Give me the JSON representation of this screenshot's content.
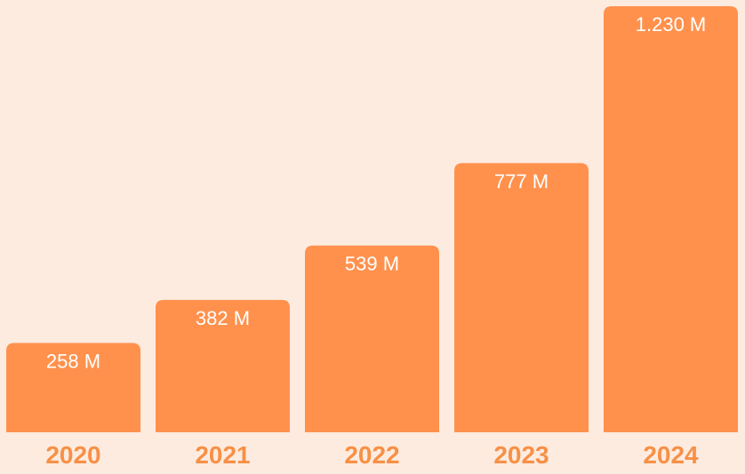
{
  "chart_data": {
    "type": "bar",
    "categories": [
      "2020",
      "2021",
      "2022",
      "2023",
      "2024"
    ],
    "values": [
      258,
      382,
      539,
      777,
      1230
    ],
    "data_labels": [
      "258 M",
      "382 M",
      "539 M",
      "777 M",
      "1.230 M"
    ],
    "ylim": [
      0,
      1230
    ],
    "grid": false,
    "legend": "none",
    "colors": {
      "bar": "#FF914D",
      "background": "#FDEBDF",
      "tick_text": "#F79046",
      "label_text": "#FFFFFF"
    }
  }
}
